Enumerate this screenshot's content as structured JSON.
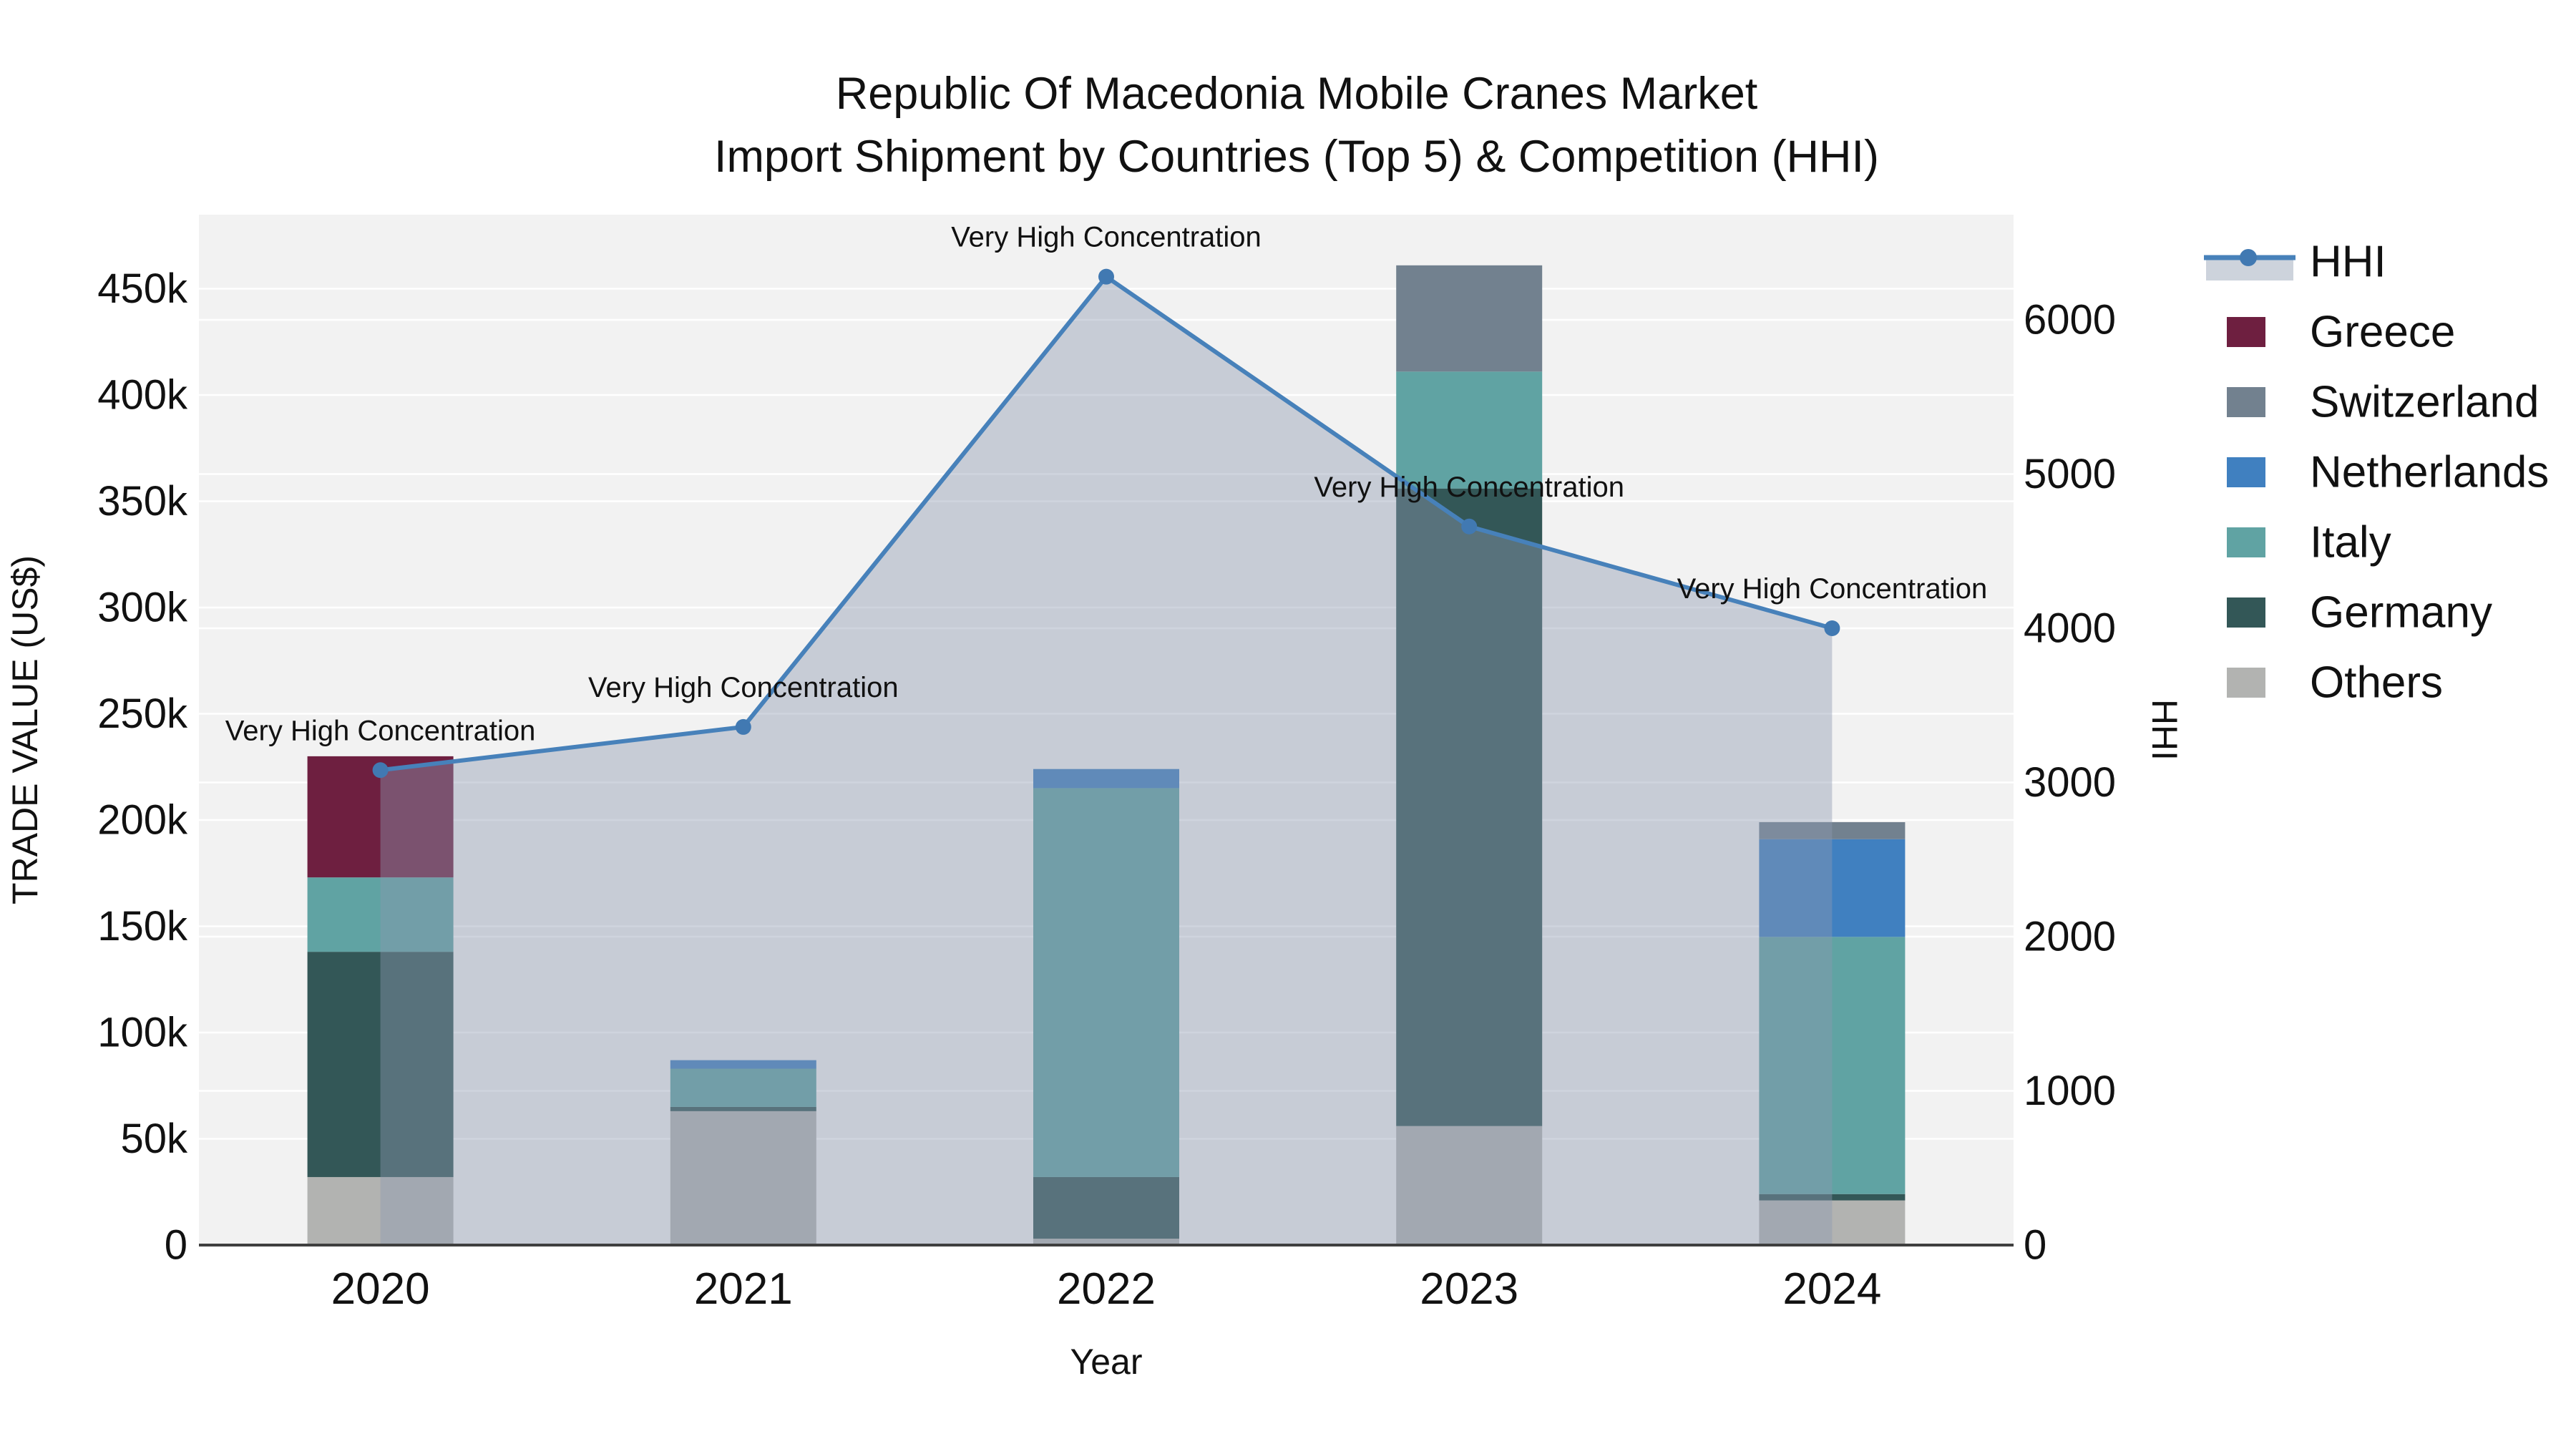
{
  "title": "Republic Of Macedonia Mobile Cranes Market",
  "subtitle": "Import Shipment by Countries (Top 5) & Competition (HHI)",
  "chart_data": {
    "type": "bar",
    "subtype": "stacked-bar-with-line",
    "categories": [
      "2020",
      "2021",
      "2022",
      "2023",
      "2024"
    ],
    "xlabel": "Year",
    "ylabel_left": "TRADE VALUE (US$)",
    "ylabel_right": "HHI",
    "ylim_left": [
      0,
      486000
    ],
    "ylim_right": [
      0,
      6700
    ],
    "yticks_left_step": 50000,
    "yticks_left_max": 450000,
    "yticks_right_step": 1000,
    "yticks_right_max": 6000,
    "grid": "on",
    "legend_position": "right",
    "series": [
      {
        "name": "Others",
        "color": "#b2b3b1",
        "values": [
          32000,
          63000,
          3000,
          56000,
          21000
        ]
      },
      {
        "name": "Germany",
        "color": "#335757",
        "values": [
          106000,
          2000,
          29000,
          300000,
          3000
        ]
      },
      {
        "name": "Italy",
        "color": "#60a3a3",
        "values": [
          35000,
          18000,
          183000,
          55000,
          121000
        ]
      },
      {
        "name": "Netherlands",
        "color": "#4080c0",
        "values": [
          0,
          4000,
          9000,
          0,
          46000
        ]
      },
      {
        "name": "Switzerland",
        "color": "#72818f",
        "values": [
          0,
          0,
          0,
          50000,
          8000
        ]
      },
      {
        "name": "Greece",
        "color": "#6e1f40",
        "values": [
          57000,
          0,
          0,
          0,
          0
        ]
      }
    ],
    "hhi_series": {
      "name": "HHI",
      "line_color": "#4781ba",
      "marker_color": "#4179b2",
      "area_fill": "rgba(140,153,177,0.42)",
      "values": [
        3080,
        3360,
        6280,
        4660,
        4000
      ]
    },
    "annotations": [
      {
        "x": "2020",
        "text": "Very High Concentration"
      },
      {
        "x": "2021",
        "text": "Very High Concentration"
      },
      {
        "x": "2022",
        "text": "Very High Concentration"
      },
      {
        "x": "2023",
        "text": "Very High Concentration"
      },
      {
        "x": "2024",
        "text": "Very High Concentration"
      }
    ]
  },
  "legend": {
    "items": [
      {
        "label": "HHI",
        "type": "line"
      },
      {
        "label": "Greece",
        "type": "swatch",
        "series": "Greece"
      },
      {
        "label": "Switzerland",
        "type": "swatch",
        "series": "Switzerland"
      },
      {
        "label": "Netherlands",
        "type": "swatch",
        "series": "Netherlands"
      },
      {
        "label": "Italy",
        "type": "swatch",
        "series": "Italy"
      },
      {
        "label": "Germany",
        "type": "swatch",
        "series": "Germany"
      },
      {
        "label": "Others",
        "type": "swatch",
        "series": "Others"
      }
    ],
    "hhi_sample_band_color": "#cdd3dc"
  },
  "style_colors": {
    "plot_background": "#f2f2f2",
    "gridline": "#ffffff",
    "axis_line": "#3f3f3f",
    "text": "#111111"
  }
}
